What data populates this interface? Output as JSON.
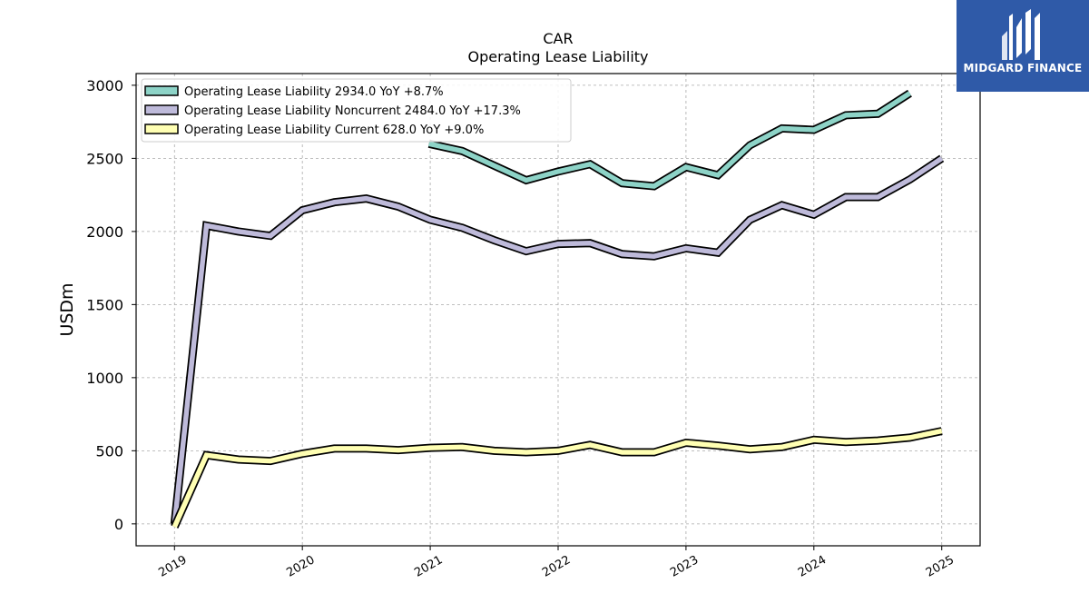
{
  "chart_data": {
    "type": "line",
    "title": "CAR",
    "subtitle": "Operating Lease Liability",
    "ylabel": "USDm",
    "xlabel": "",
    "ylim": [
      -150,
      3080
    ],
    "xlim": [
      2018.7,
      2025.3
    ],
    "yticks": [
      0,
      500,
      1000,
      1500,
      2000,
      2500,
      3000
    ],
    "xticks": [
      2019,
      2020,
      2021,
      2022,
      2023,
      2024,
      2025
    ],
    "xtick_labels": [
      "2019",
      "2020",
      "2021",
      "2022",
      "2023",
      "2024",
      "2025"
    ],
    "grid": true,
    "legend_position": "top-left",
    "series": [
      {
        "name": "Operating Lease Liability  2934.0 YoY +8.7%",
        "color": "#8dd3c7",
        "x": [
          2020.99,
          2021.25,
          2021.5,
          2021.75,
          2022.0,
          2022.25,
          2022.5,
          2022.75,
          2023.0,
          2023.25,
          2023.5,
          2023.75,
          2024.0,
          2024.25,
          2024.5,
          2024.75
        ],
        "values": [
          2600,
          2550,
          2450,
          2350,
          2410,
          2460,
          2330,
          2310,
          2440,
          2385,
          2590,
          2705,
          2695,
          2795,
          2805,
          2945
        ]
      },
      {
        "name": "Operating Lease Liability Noncurrent  2484.0 YoY +17.3%",
        "color": "#bebada",
        "x": [
          2019.0,
          2019.25,
          2019.5,
          2019.75,
          2020.0,
          2020.25,
          2020.5,
          2020.75,
          2021.0,
          2021.25,
          2021.5,
          2021.75,
          2022.0,
          2022.25,
          2022.5,
          2022.75,
          2023.0,
          2023.25,
          2023.5,
          2023.75,
          2024.0,
          2024.25,
          2024.5,
          2024.75,
          2025.0
        ],
        "values": [
          0,
          2040,
          2000,
          1970,
          2145,
          2200,
          2225,
          2170,
          2080,
          2025,
          1940,
          1865,
          1915,
          1920,
          1845,
          1830,
          1885,
          1855,
          2080,
          2180,
          2115,
          2235,
          2235,
          2355,
          2500
        ]
      },
      {
        "name": "Operating Lease Liability Current  628.0 YoY +9.0%",
        "color": "#ffffb3",
        "x": [
          2019.0,
          2019.25,
          2019.5,
          2019.75,
          2020.0,
          2020.25,
          2020.5,
          2020.75,
          2021.0,
          2021.25,
          2021.5,
          2021.75,
          2022.0,
          2022.25,
          2022.5,
          2022.75,
          2023.0,
          2023.25,
          2023.5,
          2023.75,
          2024.0,
          2024.25,
          2024.5,
          2024.75,
          2025.0
        ],
        "values": [
          -20,
          470,
          440,
          430,
          480,
          515,
          515,
          505,
          520,
          525,
          500,
          490,
          500,
          540,
          490,
          490,
          555,
          535,
          510,
          525,
          575,
          560,
          570,
          590,
          635
        ]
      }
    ]
  },
  "logo": {
    "text": "MIDGARD FINANCE",
    "color": "#2f5aa8"
  }
}
